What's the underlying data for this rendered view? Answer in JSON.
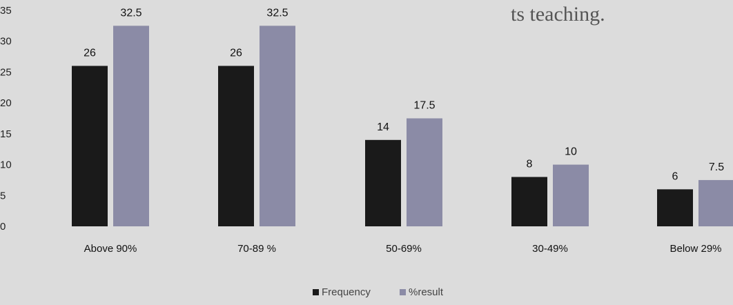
{
  "chart_data": {
    "type": "bar",
    "title": "",
    "xlabel": "",
    "ylabel": "",
    "ylim": [
      0,
      35
    ],
    "yticks": [
      0,
      5,
      10,
      15,
      20,
      25,
      30,
      35
    ],
    "categories": [
      "Above 90%",
      "70-89 %",
      "50-69%",
      "30-49%",
      "Below 29%"
    ],
    "series": [
      {
        "name": "Frequency",
        "values": [
          26,
          26,
          14,
          8,
          6
        ],
        "color": "#1a1a1a"
      },
      {
        "name": "%result",
        "values": [
          32.5,
          32.5,
          17.5,
          10,
          7.5
        ],
        "color": "#8b8ba6"
      }
    ],
    "grid": false,
    "legend": "bottom"
  },
  "top_text_fragment": "ts teaching."
}
